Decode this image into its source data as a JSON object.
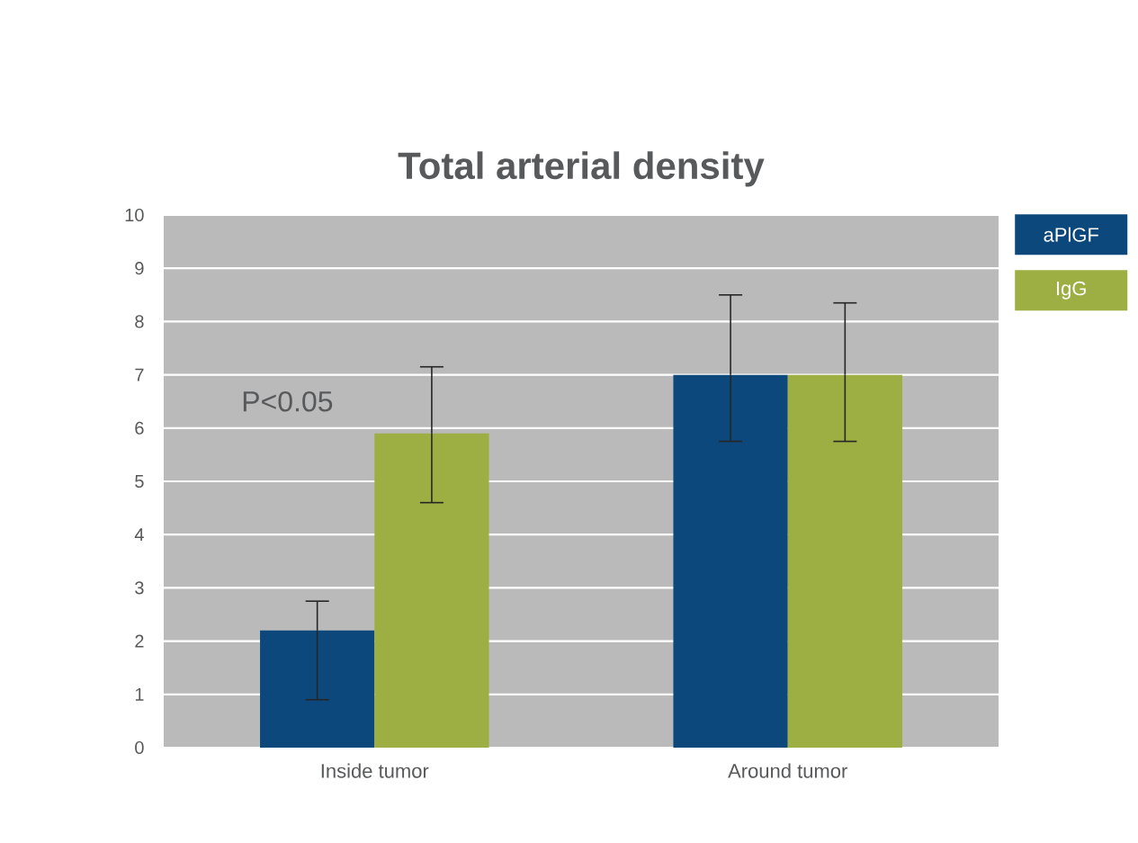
{
  "chart_data": {
    "type": "bar",
    "title": "Total arterial density",
    "categories": [
      "Inside tumor",
      "Around tumor"
    ],
    "series": [
      {
        "name": "aPlGF",
        "color": "#0c487c",
        "values": [
          2.2,
          7.0
        ],
        "errors": [
          [
            0.9,
            2.75
          ],
          [
            5.75,
            8.5
          ]
        ]
      },
      {
        "name": "IgG",
        "color": "#9daf42",
        "values": [
          5.9,
          7.0
        ],
        "errors": [
          [
            4.6,
            7.15
          ],
          [
            5.75,
            8.35
          ]
        ]
      }
    ],
    "ylim": [
      0,
      10
    ],
    "yticks": [
      0,
      1,
      2,
      3,
      4,
      5,
      6,
      7,
      8,
      9,
      10
    ],
    "grid": "y",
    "legend": "top right",
    "annotations": [
      "P<0.05"
    ]
  }
}
